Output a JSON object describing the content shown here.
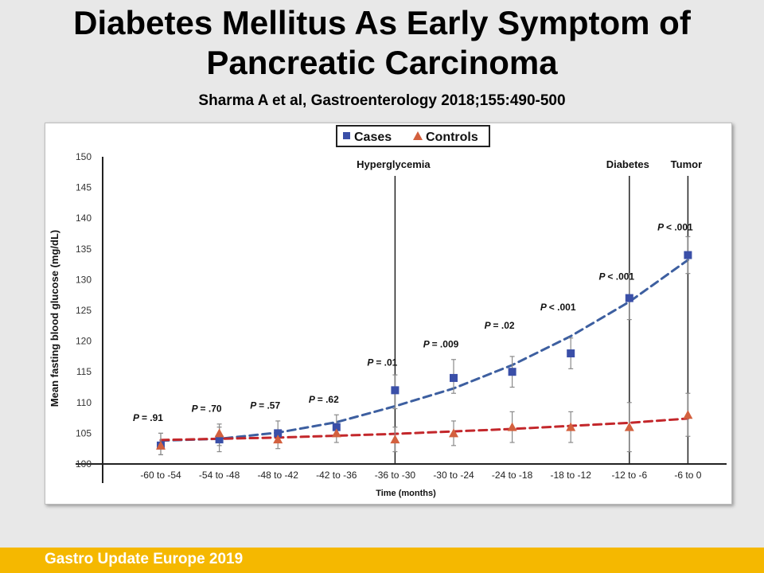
{
  "slide": {
    "title_line1": "Diabetes Mellitus As Early Symptom of",
    "title_line2": "Pancreatic Carcinoma",
    "citation": "Sharma A et al, Gastroenterology 2018;155:490-500",
    "footer": "Gastro Update Europe 2019"
  },
  "colors": {
    "cases": "#3a4fa8",
    "cases_line": "#3d5fa0",
    "controls": "#d3603e",
    "controls_line": "#c3272b",
    "footer_bar": "#f5b800"
  },
  "chart_data": {
    "type": "line",
    "xlabel": "Time (months)",
    "ylabel": "Mean fasting blood glucose (mg/dL)",
    "ylim": [
      100,
      150
    ],
    "yticks": [
      100,
      105,
      110,
      115,
      120,
      125,
      130,
      135,
      140,
      145,
      150
    ],
    "categories": [
      "-60 to -54",
      "-54 to -48",
      "-48 to -42",
      "-42 to -36",
      "-36 to -30",
      "-30 to -24",
      "-24 to -18",
      "-18 to -12",
      "-12 to -6",
      "-6 to 0"
    ],
    "series": [
      {
        "name": "Cases",
        "marker": "square",
        "values": [
          103,
          104,
          105,
          106,
          112,
          114,
          115,
          118,
          127,
          134
        ],
        "error_low": [
          101.5,
          102,
          103.5,
          104.5,
          109,
          111.5,
          112.5,
          115.5,
          123.5,
          131
        ],
        "error_high": [
          105,
          106,
          107,
          108,
          114.5,
          117,
          117.5,
          120.5,
          131,
          137
        ],
        "trend": [
          103.8,
          104.1,
          105.1,
          106.8,
          109.4,
          112.3,
          116.1,
          120.8,
          126.4,
          133.2
        ]
      },
      {
        "name": "Controls",
        "marker": "triangle",
        "values": [
          103,
          105,
          104,
          105,
          104,
          105,
          106,
          106,
          106,
          108
        ],
        "error_low": [
          101.5,
          103,
          102.5,
          103.5,
          102,
          103,
          103.5,
          103.5,
          102,
          104.5
        ],
        "error_high": [
          105,
          106.5,
          105.5,
          106.5,
          106,
          107,
          108.5,
          108.5,
          110,
          111.5
        ],
        "trend": [
          103.9,
          104.1,
          104.3,
          104.6,
          104.9,
          105.3,
          105.7,
          106.2,
          106.7,
          107.4
        ]
      }
    ],
    "p_values": [
      "P = .91",
      "P = .70",
      "P = .57",
      "P = .62",
      "P = .01",
      "P = .009",
      "P = .02",
      "P < .001",
      "P < .001",
      "P < .001"
    ],
    "p_value_y": [
      107,
      108.5,
      109,
      110,
      116,
      119,
      122,
      125,
      130,
      138
    ],
    "events": [
      {
        "label": "Hyperglycemia",
        "x_index": 4
      },
      {
        "label": "Diabetes",
        "x_index": 8
      },
      {
        "label": "Tumor",
        "x_index": 9
      }
    ],
    "legend_position": "top-center",
    "grid": false
  }
}
